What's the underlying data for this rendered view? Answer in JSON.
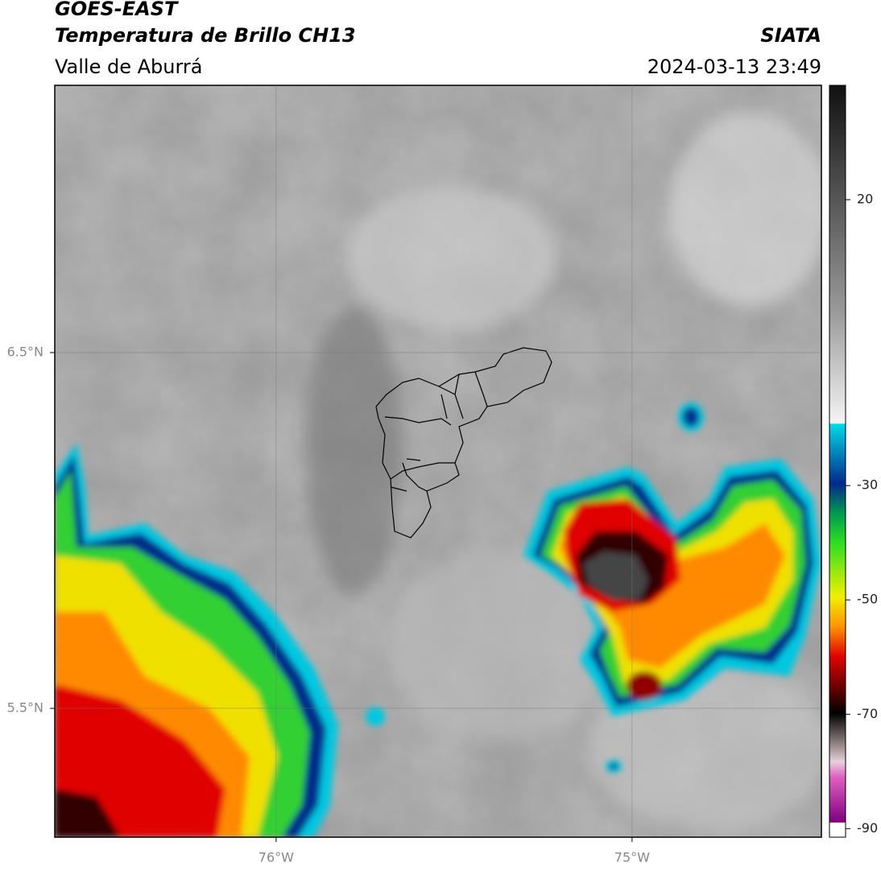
{
  "header": {
    "title": "GOES-EAST",
    "subtitle": "Temperatura de Brillo CH13",
    "region": "Valle de Aburrá",
    "source": "SIATA",
    "timestamp": "2024-03-13 23:49"
  },
  "map": {
    "xlim": [
      -76.622,
      -74.468
    ],
    "ylim": [
      5.138,
      7.251
    ],
    "xticks": [
      {
        "value": -76,
        "label": "76°W"
      },
      {
        "value": -75,
        "label": "75°W"
      }
    ],
    "yticks": [
      {
        "value": 6.5,
        "label": "6.5°N"
      },
      {
        "value": 5.5,
        "label": "5.5°N"
      }
    ]
  },
  "colorbar": {
    "lim": [
      -91.5,
      40
    ],
    "ticks": [
      20,
      -30,
      -50,
      -70,
      -90
    ]
  }
}
